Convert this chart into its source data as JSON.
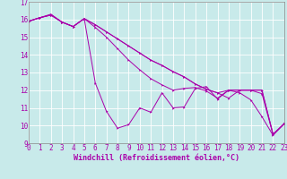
{
  "bg_color": "#c8eaea",
  "line_color": "#aa00aa",
  "grid_color": "#ffffff",
  "xlim": [
    0,
    23
  ],
  "ylim": [
    9,
    17
  ],
  "xticks": [
    0,
    1,
    2,
    3,
    4,
    5,
    6,
    7,
    8,
    9,
    10,
    11,
    12,
    13,
    14,
    15,
    16,
    17,
    18,
    19,
    20,
    21,
    22,
    23
  ],
  "yticks": [
    9,
    10,
    11,
    12,
    13,
    14,
    15,
    16,
    17
  ],
  "xlabel": "Windchill (Refroidissement éolien,°C)",
  "line1_y": [
    15.9,
    16.1,
    16.3,
    15.85,
    15.6,
    16.05,
    15.7,
    15.3,
    14.9,
    14.5,
    14.1,
    13.7,
    13.4,
    13.05,
    12.75,
    12.35,
    12.05,
    11.85,
    11.55,
    12.0,
    12.0,
    12.0,
    9.5,
    10.1
  ],
  "line2_y": [
    15.9,
    16.1,
    16.25,
    15.85,
    15.6,
    16.05,
    15.55,
    15.0,
    14.35,
    13.7,
    13.15,
    12.65,
    12.3,
    12.0,
    12.1,
    12.15,
    11.95,
    11.55,
    12.0,
    12.0,
    12.0,
    12.0,
    9.5,
    10.1
  ],
  "line3_y": [
    15.9,
    16.1,
    16.25,
    15.85,
    15.6,
    16.05,
    12.4,
    10.8,
    9.85,
    10.05,
    11.0,
    10.75,
    11.85,
    11.0,
    11.05,
    12.1,
    12.2,
    11.5,
    12.0,
    11.85,
    11.45,
    10.5,
    9.45,
    10.1
  ],
  "line4_y": [
    15.9,
    16.1,
    16.25,
    15.85,
    15.6,
    16.05,
    15.7,
    15.3,
    14.9,
    14.5,
    14.1,
    13.7,
    13.4,
    13.05,
    12.75,
    12.35,
    12.05,
    11.85,
    12.0,
    12.0,
    12.0,
    11.8,
    9.5,
    10.1
  ],
  "tick_fontsize": 5.5,
  "xlabel_fontsize": 6.0,
  "lw": 0.7,
  "ms": 1.8
}
